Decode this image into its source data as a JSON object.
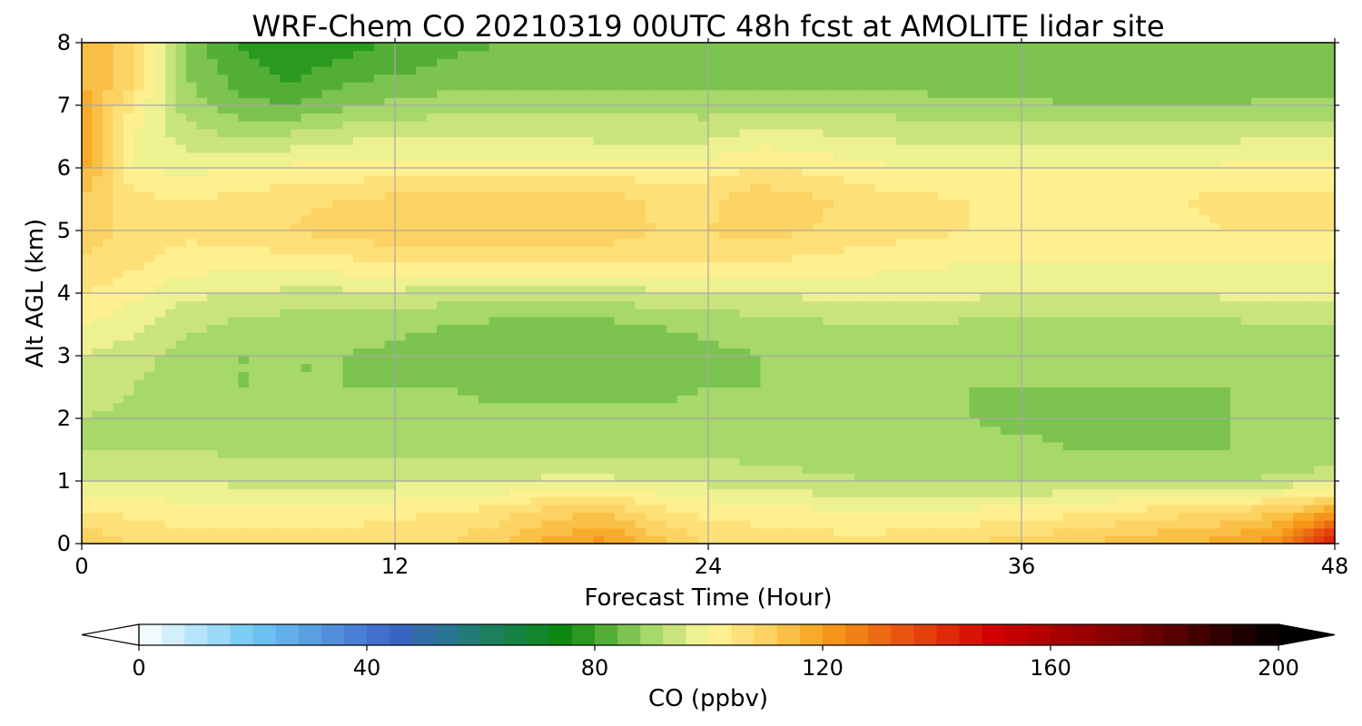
{
  "chart_data": {
    "type": "heatmap",
    "subtype": "filled-contour",
    "title": "WRF-Chem CO  20210319 00UTC 48h fcst at AMOLITE lidar site",
    "xlabel": "Forecast Time (Hour)",
    "ylabel": "Alt AGL (km)",
    "xlim": [
      0,
      48
    ],
    "ylim": [
      0,
      8
    ],
    "xticks": [
      0,
      12,
      24,
      36,
      48
    ],
    "yticks": [
      0,
      1,
      2,
      3,
      4,
      5,
      6,
      7,
      8
    ],
    "grid": true,
    "colorbar": {
      "label": "CO  (ppbv)",
      "range": [
        0,
        200
      ],
      "ticks": [
        0,
        40,
        80,
        120,
        160,
        200
      ],
      "extend": "both",
      "orientation": "horizontal",
      "colormap_stops": [
        {
          "value": 0,
          "color": "#ffffff"
        },
        {
          "value": 20,
          "color": "#6ec8f5"
        },
        {
          "value": 45,
          "color": "#3a63c8"
        },
        {
          "value": 60,
          "color": "#1e7f6a"
        },
        {
          "value": 75,
          "color": "#0a8a0a"
        },
        {
          "value": 90,
          "color": "#a6d86a"
        },
        {
          "value": 100,
          "color": "#fff79a"
        },
        {
          "value": 110,
          "color": "#fcd362"
        },
        {
          "value": 120,
          "color": "#f7a11a"
        },
        {
          "value": 135,
          "color": "#e8500f"
        },
        {
          "value": 150,
          "color": "#d10000"
        },
        {
          "value": 175,
          "color": "#7a0000"
        },
        {
          "value": 200,
          "color": "#000000"
        }
      ]
    },
    "x": [
      0,
      2,
      4,
      6,
      8,
      10,
      12,
      14,
      16,
      18,
      20,
      22,
      24,
      26,
      28,
      30,
      32,
      34,
      36,
      38,
      40,
      42,
      44,
      46,
      48
    ],
    "y": [
      0,
      0.5,
      1,
      1.5,
      2,
      2.5,
      3,
      3.5,
      4,
      4.5,
      5,
      5.5,
      6,
      6.5,
      7,
      7.5,
      8
    ],
    "values": [
      [
        112,
        108,
        106,
        106,
        106,
        106,
        107,
        108,
        112,
        118,
        122,
        114,
        108,
        107,
        106,
        106,
        107,
        108,
        110,
        112,
        114,
        116,
        118,
        124,
        150
      ],
      [
        104,
        103,
        102,
        102,
        102,
        102,
        103,
        104,
        106,
        110,
        112,
        106,
        103,
        102,
        101,
        100,
        100,
        101,
        102,
        103,
        105,
        107,
        109,
        112,
        120
      ],
      [
        96,
        96,
        96,
        95,
        95,
        95,
        95,
        95,
        96,
        97,
        97,
        96,
        95,
        94,
        93,
        92,
        92,
        92,
        92,
        92,
        92,
        92,
        92,
        93,
        95
      ],
      [
        92,
        92,
        92,
        91,
        91,
        91,
        91,
        91,
        91,
        91,
        91,
        91,
        91,
        90,
        90,
        90,
        90,
        89,
        89,
        88,
        88,
        88,
        88,
        88,
        89
      ],
      [
        92,
        91,
        90,
        89,
        89,
        89,
        89,
        89,
        89,
        89,
        89,
        89,
        89,
        89,
        89,
        88,
        88,
        88,
        87,
        87,
        87,
        87,
        88,
        88,
        88
      ],
      [
        94,
        92,
        89,
        88,
        88,
        88,
        88,
        88,
        87,
        87,
        87,
        87,
        88,
        88,
        88,
        88,
        88,
        88,
        88,
        88,
        88,
        88,
        88,
        88,
        89
      ],
      [
        96,
        94,
        90,
        88,
        88,
        88,
        87,
        86,
        85,
        84,
        85,
        86,
        87,
        88,
        89,
        90,
        90,
        89,
        88,
        88,
        88,
        88,
        89,
        90,
        90
      ],
      [
        100,
        97,
        93,
        91,
        90,
        90,
        89,
        88,
        87,
        87,
        87,
        88,
        89,
        90,
        91,
        92,
        92,
        91,
        90,
        90,
        90,
        91,
        91,
        92,
        92
      ],
      [
        104,
        101,
        97,
        96,
        95,
        95,
        95,
        94,
        94,
        94,
        94,
        95,
        96,
        96,
        97,
        97,
        97,
        97,
        96,
        96,
        96,
        96,
        97,
        97,
        97
      ],
      [
        108,
        105,
        102,
        102,
        102,
        103,
        104,
        105,
        105,
        105,
        104,
        104,
        104,
        104,
        103,
        102,
        101,
        100,
        100,
        100,
        100,
        100,
        100,
        100,
        100
      ],
      [
        110,
        107,
        105,
        106,
        108,
        110,
        111,
        112,
        112,
        112,
        111,
        108,
        108,
        110,
        108,
        106,
        105,
        104,
        103,
        103,
        103,
        103,
        104,
        104,
        104
      ],
      [
        112,
        105,
        104,
        105,
        107,
        108,
        109,
        110,
        111,
        111,
        110,
        107,
        107,
        111,
        109,
        106,
        105,
        104,
        103,
        104,
        104,
        104,
        105,
        105,
        105
      ],
      [
        118,
        100,
        99,
        100,
        101,
        101,
        102,
        102,
        102,
        102,
        102,
        101,
        102,
        104,
        103,
        101,
        100,
        100,
        100,
        100,
        100,
        100,
        101,
        101,
        101
      ],
      [
        122,
        100,
        94,
        92,
        93,
        95,
        96,
        96,
        96,
        96,
        95,
        95,
        95,
        98,
        97,
        96,
        95,
        95,
        95,
        95,
        95,
        95,
        95,
        96,
        96
      ],
      [
        118,
        103,
        90,
        85,
        84,
        87,
        89,
        90,
        90,
        91,
        91,
        91,
        90,
        91,
        91,
        90,
        90,
        89,
        89,
        88,
        87,
        87,
        88,
        89,
        89
      ],
      [
        116,
        110,
        88,
        82,
        79,
        82,
        84,
        85,
        86,
        86,
        86,
        86,
        86,
        86,
        86,
        85,
        85,
        85,
        85,
        84,
        84,
        84,
        84,
        85,
        85
      ],
      [
        114,
        110,
        86,
        80,
        76,
        78,
        81,
        83,
        84,
        84,
        84,
        84,
        84,
        84,
        84,
        84,
        84,
        84,
        84,
        84,
        84,
        84,
        84,
        84,
        84
      ]
    ]
  }
}
